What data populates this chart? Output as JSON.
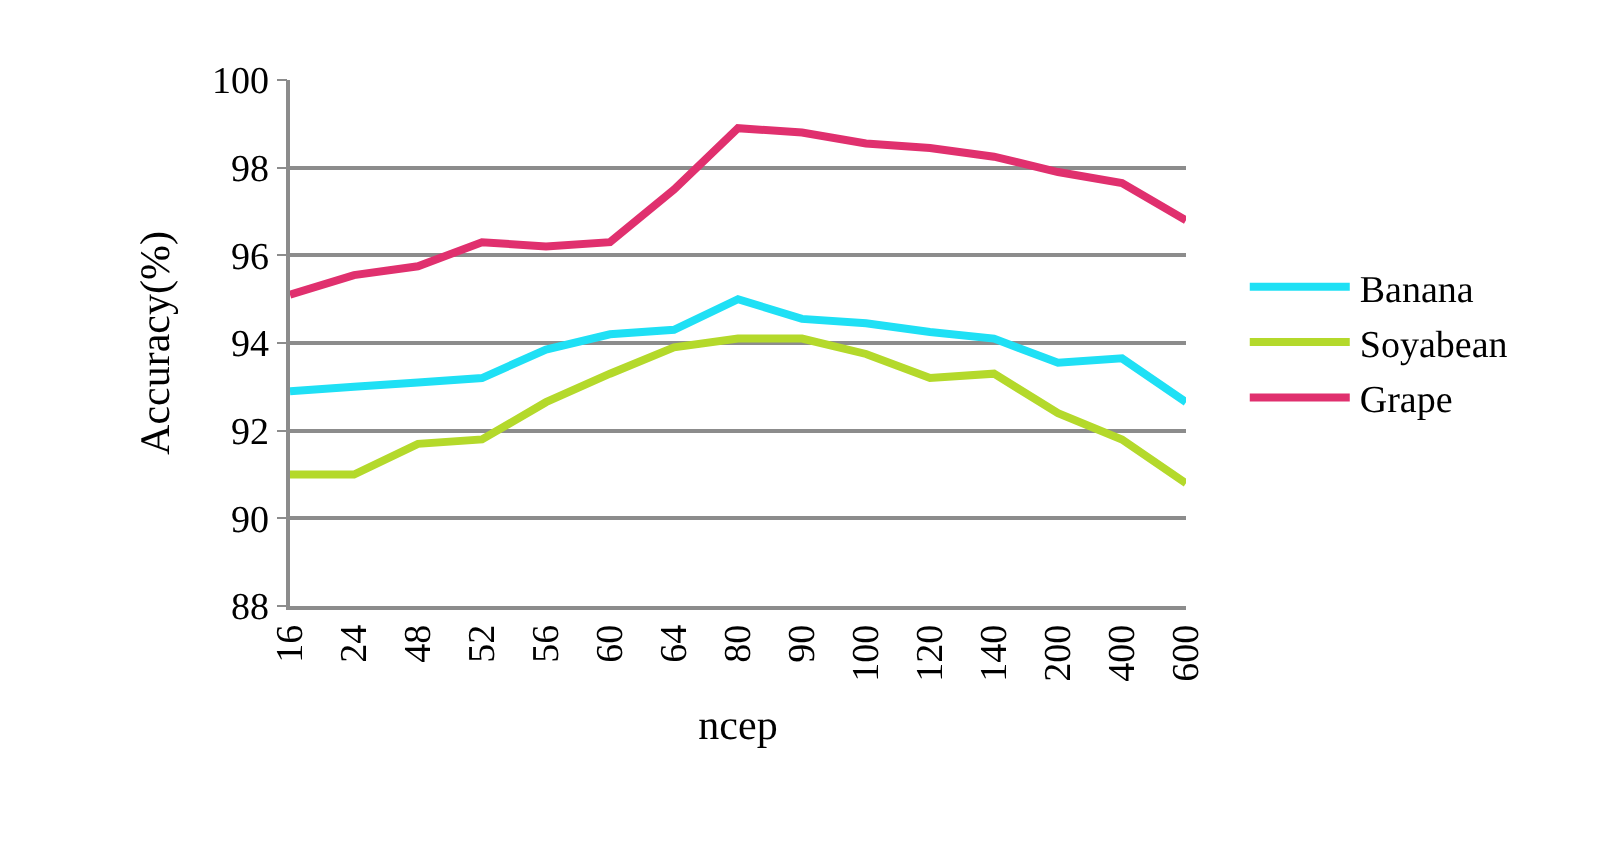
{
  "chart_data": {
    "type": "line",
    "xlabel": "ncep",
    "ylabel": "Accuracy(%)",
    "categories": [
      "16",
      "24",
      "48",
      "52",
      "56",
      "60",
      "64",
      "80",
      "90",
      "100",
      "120",
      "140",
      "200",
      "400",
      "600"
    ],
    "series": [
      {
        "name": "Banana",
        "color": "#1fe0f5",
        "values": [
          92.9,
          93.0,
          93.1,
          93.2,
          93.85,
          94.2,
          94.3,
          95.0,
          94.55,
          94.45,
          94.25,
          94.1,
          93.55,
          93.65,
          92.65
        ]
      },
      {
        "name": "Soyabean",
        "color": "#b4d92b",
        "values": [
          91.0,
          91.0,
          91.7,
          91.8,
          92.65,
          93.3,
          93.9,
          94.1,
          94.1,
          93.75,
          93.2,
          93.3,
          92.4,
          91.8,
          90.8
        ]
      },
      {
        "name": "Grape",
        "color": "#e0306e",
        "values": [
          95.1,
          95.55,
          95.75,
          96.3,
          96.2,
          96.3,
          97.5,
          98.9,
          98.8,
          98.55,
          98.45,
          98.25,
          97.9,
          97.65,
          96.8
        ]
      }
    ],
    "ylim": [
      88,
      100
    ],
    "yticks": [
      88,
      90,
      92,
      94,
      96,
      98,
      100
    ],
    "grid": "y",
    "legend": "right",
    "marker": "none",
    "line_style": "solid"
  }
}
